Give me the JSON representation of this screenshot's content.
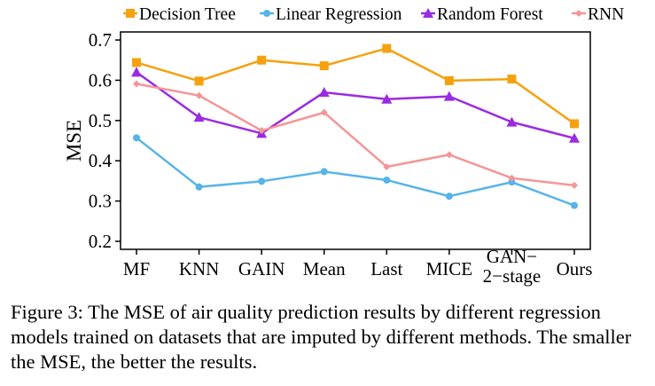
{
  "chart_data": {
    "type": "line",
    "title": "",
    "xlabel": "",
    "ylabel": "MSE",
    "ylim": [
      0.18,
      0.72
    ],
    "yticks": [
      0.2,
      0.3,
      0.4,
      0.5,
      0.6,
      0.7
    ],
    "ytick_labels": [
      "0.2",
      "0.3",
      "0.4",
      "0.5",
      "0.6",
      "0.7"
    ],
    "categories": [
      "MF",
      "KNN",
      "GAIN",
      "Mean",
      "Last",
      "MICE",
      "GAN–2–stage",
      "Ours"
    ],
    "category_label_lines": [
      [
        "MF"
      ],
      [
        "KNN"
      ],
      [
        "GAIN"
      ],
      [
        "Mean"
      ],
      [
        "Last"
      ],
      [
        "MICE"
      ],
      [
        "GAN−",
        "2−stage"
      ],
      [
        "Ours"
      ]
    ],
    "grid": false,
    "legend_position": "top",
    "series": [
      {
        "name": "Decision Tree",
        "color": "#f5a10f",
        "marker": "square",
        "values": [
          0.644,
          0.598,
          0.65,
          0.636,
          0.679,
          0.599,
          0.603,
          0.492
        ]
      },
      {
        "name": "Linear Regression",
        "color": "#56b4e9",
        "marker": "circle",
        "values": [
          0.457,
          0.335,
          0.349,
          0.373,
          0.352,
          0.312,
          0.347,
          0.289
        ]
      },
      {
        "name": "Random Forest",
        "color": "#9a2be2",
        "marker": "triangle",
        "values": [
          0.62,
          0.508,
          0.468,
          0.57,
          0.553,
          0.56,
          0.496,
          0.456
        ]
      },
      {
        "name": "RNN",
        "color": "#f59595",
        "marker": "diamond",
        "values": [
          0.591,
          0.562,
          0.475,
          0.52,
          0.385,
          0.415,
          0.357,
          0.339
        ]
      }
    ]
  },
  "caption": {
    "text": "Figure 3: The MSE of air quality prediction results by different regression models trained on datasets that are imputed by different methods. The smaller the MSE, the better the results."
  }
}
